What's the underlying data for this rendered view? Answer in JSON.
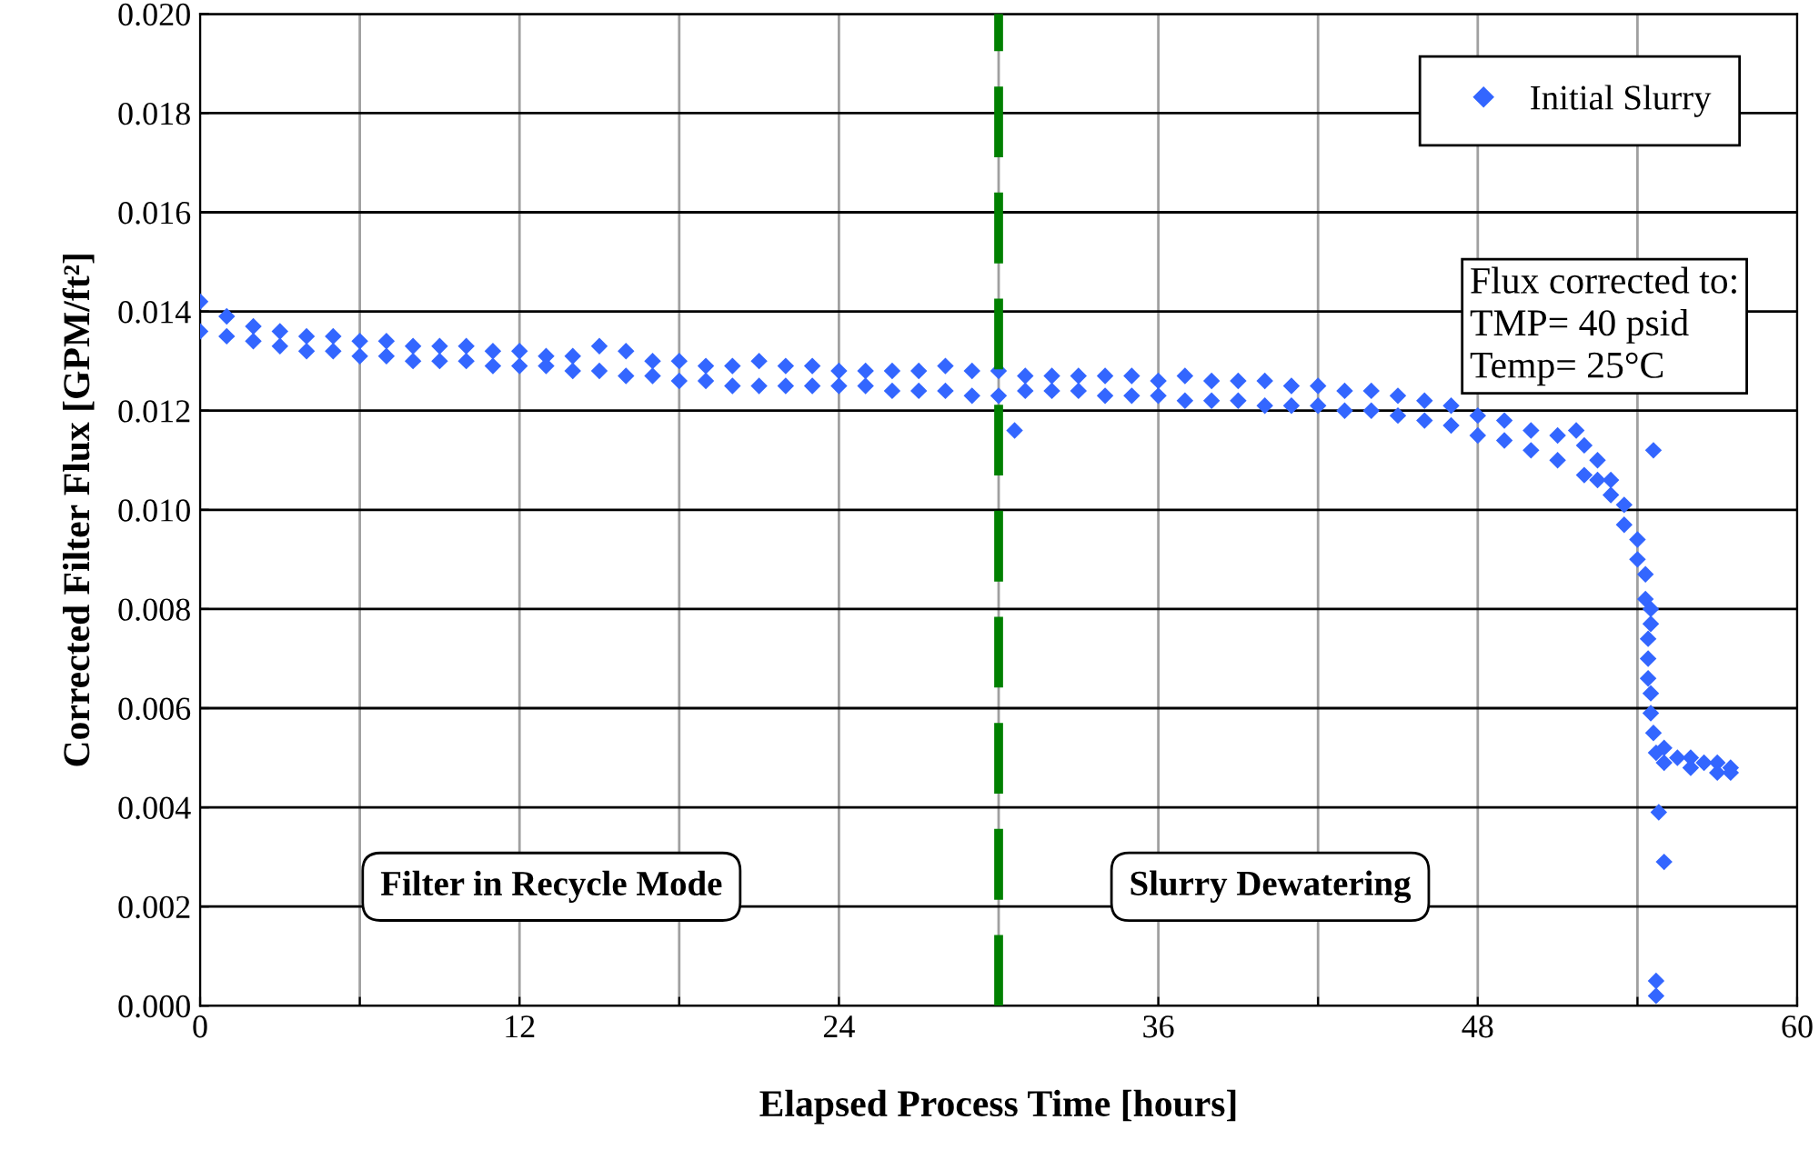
{
  "chart_data": {
    "type": "scatter",
    "xlabel": "Elapsed Process Time [hours]",
    "ylabel": "Corrected Filter Flux [GPM/ft²]",
    "xlim": [
      0,
      60
    ],
    "ylim": [
      0,
      0.02
    ],
    "xticks": [
      0,
      {
        "value": 6,
        "label": null
      },
      12,
      {
        "value": 18,
        "label": null
      },
      24,
      {
        "value": 30,
        "label": null
      },
      36,
      {
        "value": 42,
        "label": null
      },
      48,
      {
        "value": 54,
        "label": null
      },
      60
    ],
    "yticks": [
      {
        "value": 0,
        "label": "0.000"
      },
      {
        "value": 0.002,
        "label": "0.002"
      },
      {
        "value": 0.004,
        "label": "0.004"
      },
      {
        "value": 0.006,
        "label": "0.006"
      },
      {
        "value": 0.008,
        "label": "0.008"
      },
      {
        "value": 0.01,
        "label": "0.010"
      },
      {
        "value": 0.012,
        "label": "0.012"
      },
      {
        "value": 0.014,
        "label": "0.014"
      },
      {
        "value": 0.016,
        "label": "0.016"
      },
      {
        "value": 0.018,
        "label": "0.018"
      },
      {
        "value": 0.02,
        "label": "0.020"
      }
    ],
    "grid": true,
    "legend": "top right",
    "marker": "diamond",
    "series": [
      {
        "name": "Initial Slurry",
        "color": "#3366ff",
        "x": [
          0,
          0,
          1,
          1,
          2,
          2,
          3,
          3,
          4,
          4,
          5,
          5,
          6,
          6,
          7,
          7,
          8,
          8,
          9,
          9,
          10,
          10,
          11,
          11,
          12,
          12,
          13,
          13,
          14,
          14,
          15,
          15,
          16,
          16,
          17,
          17,
          18,
          18,
          19,
          19,
          20,
          20,
          21,
          21,
          22,
          22,
          23,
          23,
          24,
          24,
          25,
          25,
          26,
          26,
          27,
          27,
          28,
          28,
          29,
          29,
          30,
          30,
          31,
          31,
          32,
          32,
          33,
          33,
          34,
          34,
          35,
          35,
          36,
          36,
          37,
          37,
          38,
          38,
          39,
          39,
          40,
          40,
          41,
          41,
          42,
          42,
          43,
          43,
          44,
          44,
          45,
          45,
          46,
          46,
          47,
          47,
          48,
          48,
          49,
          49,
          50,
          50,
          51,
          51,
          52,
          52,
          52.5,
          52.5,
          53,
          53,
          53.5,
          53.5,
          54,
          54,
          54.3,
          54.3,
          54.5,
          54.5,
          54.4,
          54.4,
          54.4,
          54.5,
          54.5,
          54.6,
          54.7,
          55,
          55,
          55.5,
          56,
          56,
          56.5,
          57,
          57,
          57.5,
          57.5,
          30.6,
          51.7,
          54.6,
          54.8,
          55.0,
          54.7,
          54.7
        ],
        "values": [
          0.0142,
          0.0136,
          0.0139,
          0.0135,
          0.0137,
          0.0134,
          0.0136,
          0.0133,
          0.0135,
          0.0132,
          0.0135,
          0.0132,
          0.0134,
          0.0131,
          0.0134,
          0.0131,
          0.0133,
          0.013,
          0.0133,
          0.013,
          0.0133,
          0.013,
          0.0132,
          0.0129,
          0.0132,
          0.0129,
          0.0131,
          0.0129,
          0.0131,
          0.0128,
          0.0133,
          0.0128,
          0.0132,
          0.0127,
          0.013,
          0.0127,
          0.013,
          0.0126,
          0.0129,
          0.0126,
          0.0129,
          0.0125,
          0.013,
          0.0125,
          0.0129,
          0.0125,
          0.0129,
          0.0125,
          0.0128,
          0.0125,
          0.0128,
          0.0125,
          0.0128,
          0.0124,
          0.0128,
          0.0124,
          0.0129,
          0.0124,
          0.0128,
          0.0123,
          0.0128,
          0.0123,
          0.0127,
          0.0124,
          0.0127,
          0.0124,
          0.0127,
          0.0124,
          0.0127,
          0.0123,
          0.0127,
          0.0123,
          0.0126,
          0.0123,
          0.0127,
          0.0122,
          0.0126,
          0.0122,
          0.0126,
          0.0122,
          0.0126,
          0.0121,
          0.0125,
          0.0121,
          0.0125,
          0.0121,
          0.0124,
          0.012,
          0.0124,
          0.012,
          0.0123,
          0.0119,
          0.0122,
          0.0118,
          0.0121,
          0.0117,
          0.0119,
          0.0115,
          0.0118,
          0.0114,
          0.0116,
          0.0112,
          0.0115,
          0.011,
          0.0113,
          0.0107,
          0.011,
          0.0106,
          0.0106,
          0.0103,
          0.0101,
          0.0097,
          0.0094,
          0.009,
          0.0087,
          0.0082,
          0.008,
          0.0077,
          0.0074,
          0.007,
          0.0066,
          0.0063,
          0.0059,
          0.0055,
          0.0051,
          0.0052,
          0.0049,
          0.005,
          0.005,
          0.0048,
          0.0049,
          0.0049,
          0.0047,
          0.0048,
          0.0047,
          0.0116,
          0.0116,
          0.0112,
          0.0039,
          0.0029,
          0.0005,
          0.0002
        ]
      }
    ],
    "ref_lines": [
      {
        "axis": "x",
        "value": 30,
        "color": "#008000",
        "line_style": "dashed"
      }
    ],
    "annotations": [
      "Filter in Recycle Mode",
      "Slurry Dewatering",
      "Flux corrected to:\nTMP= 40 psid\nTemp= 25°C"
    ]
  }
}
